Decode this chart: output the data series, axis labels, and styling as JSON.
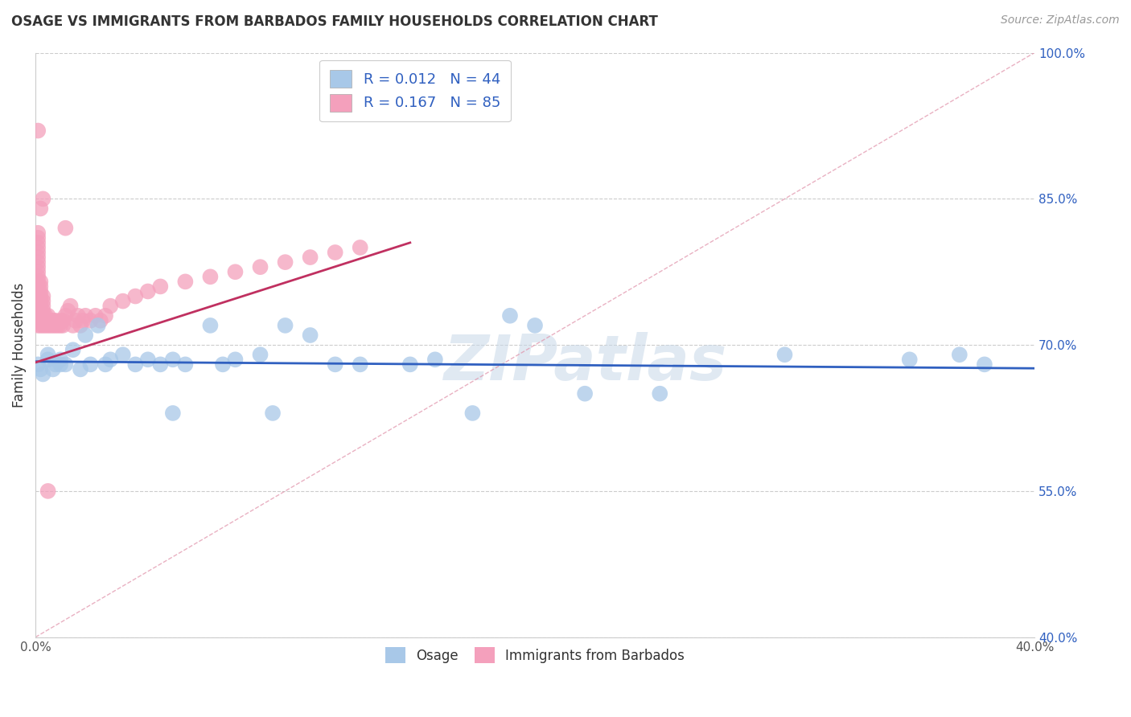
{
  "title": "OSAGE VS IMMIGRANTS FROM BARBADOS FAMILY HOUSEHOLDS CORRELATION CHART",
  "source": "Source: ZipAtlas.com",
  "ylabel": "Family Households",
  "xlim": [
    0.0,
    0.4
  ],
  "ylim": [
    0.4,
    1.0
  ],
  "xticks": [
    0.0,
    0.05,
    0.1,
    0.15,
    0.2,
    0.25,
    0.3,
    0.35,
    0.4
  ],
  "xtick_labels": [
    "0.0%",
    "",
    "",
    "",
    "",
    "",
    "",
    "",
    "40.0%"
  ],
  "yticks": [
    0.4,
    0.55,
    0.7,
    0.85,
    1.0
  ],
  "ytick_labels": [
    "40.0%",
    "55.0%",
    "70.0%",
    "85.0%",
    "100.0%"
  ],
  "blue_color": "#a8c8e8",
  "pink_color": "#f4a0bc",
  "blue_line_color": "#3060c0",
  "pink_line_color": "#c03060",
  "dash_line_color": "#e090a8",
  "watermark": "ZIPatlas",
  "legend_r1": "R = 0.012",
  "legend_n1": "N = 44",
  "legend_r2": "R = 0.167",
  "legend_n2": "N = 85",
  "legend_text_color": "#3060c0",
  "ytick_label_color": "#3060c0",
  "blue_scatter_x": [
    0.001,
    0.002,
    0.003,
    0.005,
    0.005,
    0.007,
    0.008,
    0.01,
    0.01,
    0.012,
    0.015,
    0.018,
    0.02,
    0.022,
    0.025,
    0.028,
    0.03,
    0.035,
    0.04,
    0.045,
    0.05,
    0.055,
    0.06,
    0.07,
    0.075,
    0.08,
    0.09,
    0.1,
    0.11,
    0.12,
    0.13,
    0.15,
    0.16,
    0.19,
    0.2,
    0.25,
    0.3,
    0.35,
    0.37,
    0.38,
    0.055,
    0.095,
    0.175,
    0.22
  ],
  "blue_scatter_y": [
    0.68,
    0.675,
    0.67,
    0.69,
    0.685,
    0.675,
    0.68,
    0.68,
    0.685,
    0.68,
    0.695,
    0.675,
    0.71,
    0.68,
    0.72,
    0.68,
    0.685,
    0.69,
    0.68,
    0.685,
    0.68,
    0.685,
    0.68,
    0.72,
    0.68,
    0.685,
    0.69,
    0.72,
    0.71,
    0.68,
    0.68,
    0.68,
    0.685,
    0.73,
    0.72,
    0.65,
    0.69,
    0.685,
    0.69,
    0.68,
    0.63,
    0.63,
    0.63,
    0.65
  ],
  "pink_scatter_x": [
    0.001,
    0.001,
    0.001,
    0.001,
    0.001,
    0.001,
    0.001,
    0.001,
    0.001,
    0.001,
    0.001,
    0.001,
    0.001,
    0.001,
    0.001,
    0.001,
    0.001,
    0.001,
    0.001,
    0.001,
    0.002,
    0.002,
    0.002,
    0.002,
    0.002,
    0.002,
    0.002,
    0.002,
    0.002,
    0.002,
    0.003,
    0.003,
    0.003,
    0.003,
    0.003,
    0.003,
    0.003,
    0.004,
    0.004,
    0.004,
    0.005,
    0.005,
    0.005,
    0.006,
    0.006,
    0.007,
    0.007,
    0.008,
    0.008,
    0.009,
    0.01,
    0.01,
    0.011,
    0.011,
    0.012,
    0.013,
    0.014,
    0.015,
    0.016,
    0.017,
    0.018,
    0.019,
    0.02,
    0.022,
    0.024,
    0.026,
    0.028,
    0.03,
    0.035,
    0.04,
    0.045,
    0.05,
    0.06,
    0.07,
    0.08,
    0.09,
    0.1,
    0.11,
    0.12,
    0.13,
    0.002,
    0.003,
    0.012,
    0.005,
    0.001
  ],
  "pink_scatter_y": [
    0.72,
    0.725,
    0.73,
    0.735,
    0.74,
    0.745,
    0.75,
    0.755,
    0.76,
    0.765,
    0.77,
    0.775,
    0.78,
    0.785,
    0.79,
    0.795,
    0.8,
    0.805,
    0.81,
    0.815,
    0.72,
    0.725,
    0.73,
    0.735,
    0.74,
    0.745,
    0.75,
    0.755,
    0.76,
    0.765,
    0.72,
    0.725,
    0.73,
    0.735,
    0.74,
    0.745,
    0.75,
    0.72,
    0.725,
    0.73,
    0.72,
    0.725,
    0.73,
    0.72,
    0.725,
    0.72,
    0.725,
    0.72,
    0.725,
    0.72,
    0.72,
    0.725,
    0.72,
    0.725,
    0.73,
    0.735,
    0.74,
    0.72,
    0.725,
    0.73,
    0.72,
    0.725,
    0.73,
    0.725,
    0.73,
    0.725,
    0.73,
    0.74,
    0.745,
    0.75,
    0.755,
    0.76,
    0.765,
    0.77,
    0.775,
    0.78,
    0.785,
    0.79,
    0.795,
    0.8,
    0.84,
    0.85,
    0.82,
    0.55,
    0.92
  ],
  "blue_line_x": [
    0.0,
    0.4
  ],
  "blue_line_y": [
    0.683,
    0.676
  ],
  "pink_line_x": [
    0.0,
    0.15
  ],
  "pink_line_y": [
    0.682,
    0.805
  ],
  "dash_line_x": [
    0.0,
    0.4
  ],
  "dash_line_y": [
    0.4,
    1.0
  ]
}
